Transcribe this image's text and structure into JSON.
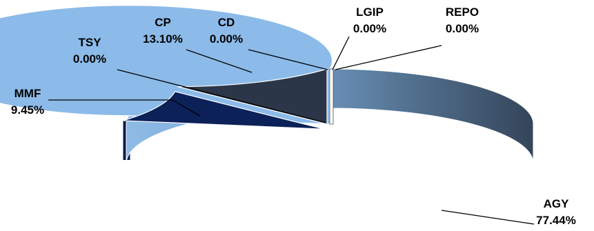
{
  "chart_data": {
    "type": "pie",
    "style": "3d-exploded",
    "categories": [
      "AGY",
      "MMF",
      "TSY",
      "CP",
      "CD",
      "LGIP",
      "REPO"
    ],
    "values": [
      77.44,
      9.45,
      0.0,
      13.1,
      0.0,
      0.0,
      0.0
    ],
    "value_labels": [
      "77.44%",
      "9.45%",
      "0.00%",
      "13.10%",
      "0.00%",
      "0.00%",
      "0.00%"
    ],
    "title": "",
    "legend": "none",
    "colors": {
      "AGY": "#8cbbe9",
      "MMF": "#0c2158",
      "CP": "#2b3748",
      "slice_edge": "#ffffff",
      "leader_line": "#000000"
    }
  }
}
